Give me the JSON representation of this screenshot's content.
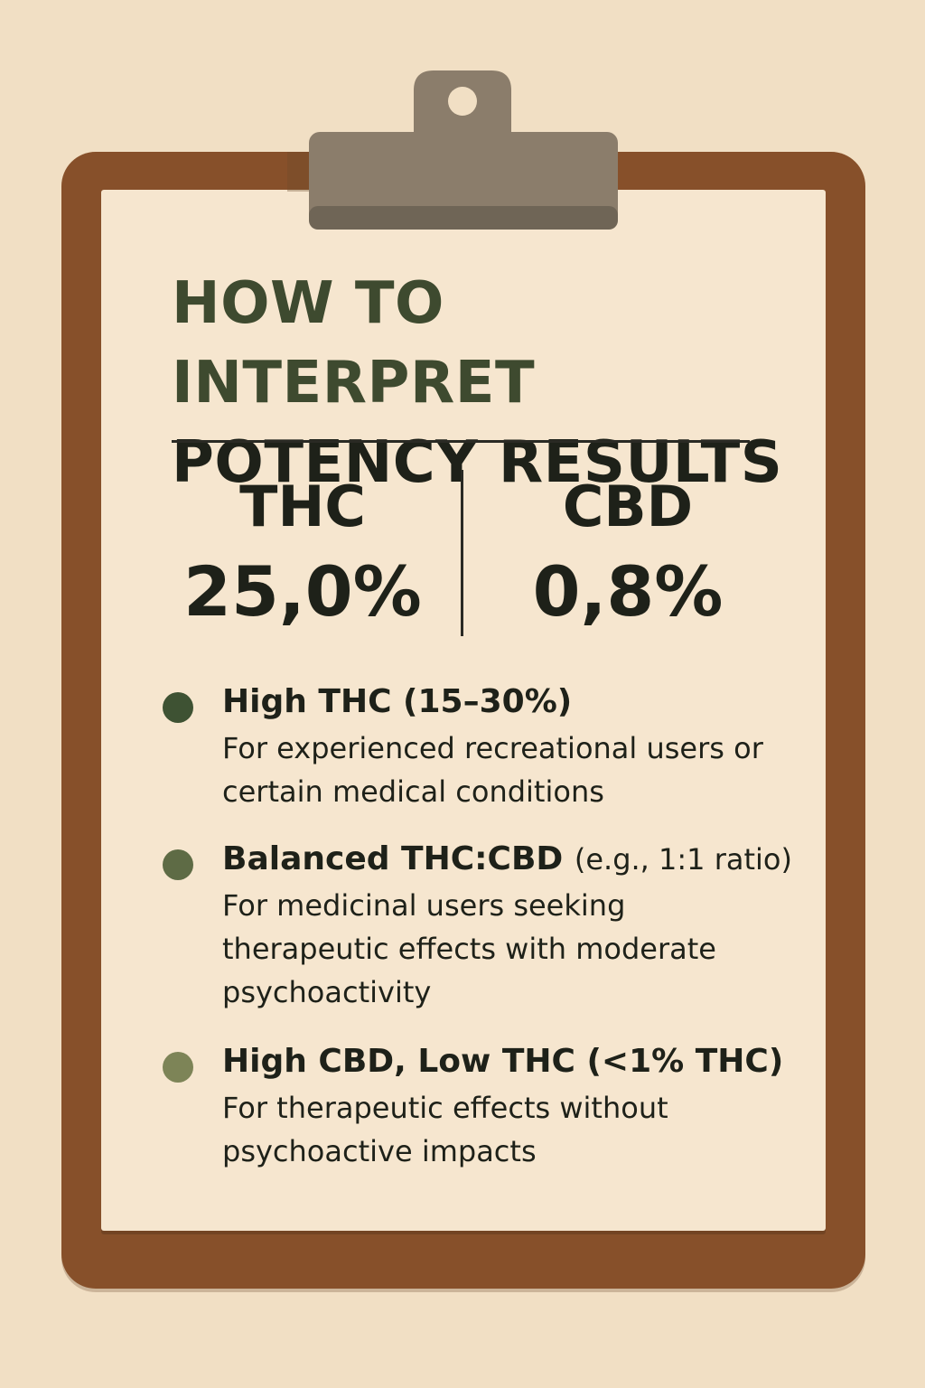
{
  "title": {
    "line1": "HOW TO INTERPRET",
    "line2": "POTENCY RESULTS"
  },
  "metrics": [
    {
      "label": "THC",
      "value": "25,0%"
    },
    {
      "label": "CBD",
      "value": "0,8%"
    }
  ],
  "items": [
    {
      "heading": "High THC (15–30%)",
      "heading_aside": "",
      "description": "For experienced recreational users or certain medical conditions",
      "dot_color": "#3e5233"
    },
    {
      "heading": "Balanced THC:CBD",
      "heading_aside": "(e.g., 1:1 ratio)",
      "description": "For medicinal users seeking therapeutic effects with moderate psychoactivity",
      "dot_color": "#5e6b45"
    },
    {
      "heading": "High CBD, Low THC (<1% THC)",
      "heading_aside": "",
      "description": "For therapeutic effects without psychoactive impacts",
      "dot_color": "#7d8457"
    }
  ],
  "colors": {
    "background": "#f1dfc4",
    "board": "#87502a",
    "paper": "#f6e6cf",
    "clip": "#8b7d6b",
    "title_accent": "#3e4a2f",
    "text": "#1e2119"
  }
}
